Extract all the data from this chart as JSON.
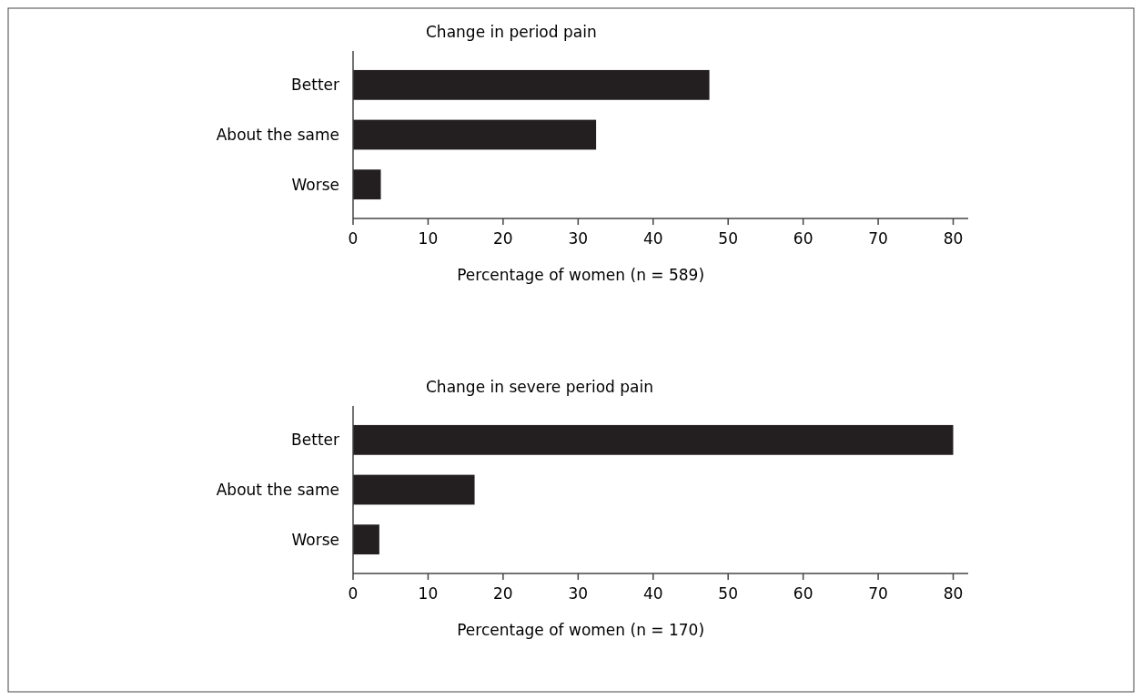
{
  "chart_data": [
    {
      "type": "bar",
      "orientation": "horizontal",
      "title": "Change in period pain",
      "categories": [
        "Better",
        "About the same",
        "Worse"
      ],
      "values": [
        47.5,
        32.4,
        3.7
      ],
      "color": "#231f20",
      "xlim": [
        0,
        82
      ],
      "xticks": [
        0,
        10,
        20,
        30,
        40,
        50,
        60,
        70,
        80
      ],
      "xlabel": "Percentage of women (n = 589)"
    },
    {
      "type": "bar",
      "orientation": "horizontal",
      "title": "Change in severe period pain",
      "categories": [
        "Better",
        "About the same",
        "Worse"
      ],
      "values": [
        80,
        16.2,
        3.5
      ],
      "color": "#231f20",
      "xlim": [
        0,
        82
      ],
      "xticks": [
        0,
        10,
        20,
        30,
        40,
        50,
        60,
        70,
        80
      ],
      "xlabel": "Percentage of women (n = 170)"
    }
  ]
}
